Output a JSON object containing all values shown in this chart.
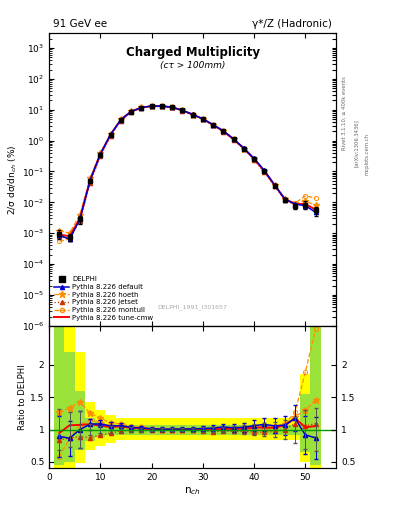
{
  "title_top": "91 GeV ee",
  "title_top_right": "γ*/Z (Hadronic)",
  "plot_title": "Charged Multiplicity",
  "plot_subtitle": "(cτ > 100mm)",
  "ylabel_main": "2/σ dσ/dn$_{ch}$ (%)",
  "ylabel_ratio": "Ratio to DELPHI",
  "xlabel": "n$_{ch}$",
  "rivet_text": "Rivet 3.1.10, ≥ 400k events",
  "arxiv_text": "[arXiv:1306.3436]",
  "mcplots_text": "mcplots.cern.ch",
  "ref_text": "DELPHI_1991_I301657",
  "ref_label": "DELPHI",
  "ylim_main": [
    1e-06,
    3000.0
  ],
  "ylim_ratio": [
    0.4,
    2.6
  ],
  "xlim": [
    0,
    56
  ],
  "nch_data": [
    2,
    4,
    6,
    8,
    10,
    12,
    14,
    16,
    18,
    20,
    22,
    24,
    26,
    28,
    30,
    32,
    34,
    36,
    38,
    40,
    42,
    44,
    46,
    48,
    50,
    52
  ],
  "data_y": [
    0.00095,
    0.00075,
    0.0028,
    0.048,
    0.34,
    1.5,
    4.5,
    8.5,
    11.5,
    13.0,
    13.0,
    12.0,
    9.5,
    7.0,
    5.0,
    3.2,
    2.0,
    1.1,
    0.55,
    0.25,
    0.1,
    0.035,
    0.012,
    0.0075,
    0.0085,
    0.0055
  ],
  "data_yerr": [
    0.0003,
    0.0002,
    0.0008,
    0.004,
    0.018,
    0.09,
    0.18,
    0.28,
    0.35,
    0.38,
    0.38,
    0.32,
    0.28,
    0.22,
    0.18,
    0.13,
    0.09,
    0.065,
    0.038,
    0.022,
    0.01,
    0.004,
    0.0018,
    0.0015,
    0.0025,
    0.0018
  ],
  "mc_nch": [
    2,
    4,
    6,
    8,
    10,
    12,
    14,
    16,
    18,
    20,
    22,
    24,
    26,
    28,
    30,
    32,
    34,
    36,
    38,
    40,
    42,
    44,
    46,
    48,
    50,
    52
  ],
  "default_y": [
    0.00085,
    0.00065,
    0.0028,
    0.052,
    0.37,
    1.58,
    4.78,
    8.78,
    11.78,
    13.18,
    13.08,
    12.08,
    9.58,
    7.08,
    5.08,
    3.28,
    2.08,
    1.13,
    0.57,
    0.265,
    0.108,
    0.037,
    0.0128,
    0.0088,
    0.0078,
    0.0048
  ],
  "hoeth_y": [
    0.0012,
    0.001,
    0.004,
    0.06,
    0.4,
    1.65,
    4.9,
    8.9,
    11.9,
    13.1,
    13.0,
    12.0,
    9.5,
    7.0,
    5.0,
    3.2,
    2.0,
    1.1,
    0.55,
    0.25,
    0.1,
    0.036,
    0.013,
    0.009,
    0.011,
    0.008
  ],
  "jetset_y": [
    0.0008,
    0.00065,
    0.0025,
    0.042,
    0.31,
    1.42,
    4.4,
    8.4,
    11.4,
    12.9,
    12.9,
    11.9,
    9.4,
    6.9,
    4.9,
    3.1,
    1.95,
    1.07,
    0.535,
    0.24,
    0.096,
    0.034,
    0.012,
    0.0082,
    0.009,
    0.006
  ],
  "montull_y": [
    0.00055,
    0.00065,
    0.003,
    0.055,
    0.38,
    1.58,
    4.75,
    8.75,
    11.75,
    13.1,
    13.05,
    12.05,
    9.55,
    7.05,
    5.05,
    3.25,
    2.05,
    1.12,
    0.56,
    0.26,
    0.105,
    0.037,
    0.013,
    0.0095,
    0.016,
    0.014
  ],
  "tunecmw_y": [
    0.0009,
    0.0008,
    0.003,
    0.052,
    0.36,
    1.56,
    4.72,
    8.72,
    11.72,
    13.08,
    13.02,
    12.02,
    9.52,
    7.02,
    5.02,
    3.22,
    2.02,
    1.11,
    0.558,
    0.258,
    0.103,
    0.036,
    0.0128,
    0.0088,
    0.0088,
    0.0058
  ],
  "color_data": "#000000",
  "color_default": "#0000cc",
  "color_hoeth": "#ff8c00",
  "color_jetset": "#cc3300",
  "color_montull": "#ff8c00",
  "color_tunecmw": "#ff0000",
  "band_x": [
    1,
    3,
    5,
    7,
    9,
    11,
    13,
    15,
    17,
    19,
    21,
    23,
    25,
    27,
    29,
    31,
    33,
    35,
    37,
    39,
    41,
    43,
    45,
    47,
    49,
    51,
    53
  ],
  "band_green_lo": [
    0.45,
    0.5,
    0.68,
    0.82,
    0.88,
    0.91,
    0.92,
    0.92,
    0.92,
    0.92,
    0.92,
    0.92,
    0.92,
    0.92,
    0.92,
    0.92,
    0.92,
    0.92,
    0.92,
    0.92,
    0.92,
    0.92,
    0.92,
    0.92,
    0.65,
    0.45
  ],
  "band_green_hi": [
    2.6,
    2.2,
    1.6,
    1.18,
    1.12,
    1.08,
    1.07,
    1.07,
    1.07,
    1.07,
    1.07,
    1.07,
    1.07,
    1.07,
    1.07,
    1.07,
    1.07,
    1.07,
    1.07,
    1.07,
    1.07,
    1.07,
    1.07,
    1.07,
    1.55,
    2.6
  ],
  "band_yellow_lo": [
    0.4,
    0.4,
    0.48,
    0.68,
    0.75,
    0.8,
    0.84,
    0.84,
    0.84,
    0.84,
    0.84,
    0.84,
    0.84,
    0.84,
    0.84,
    0.84,
    0.84,
    0.84,
    0.84,
    0.84,
    0.84,
    0.84,
    0.84,
    0.84,
    0.5,
    0.4
  ],
  "band_yellow_hi": [
    2.8,
    2.7,
    2.2,
    1.42,
    1.3,
    1.22,
    1.18,
    1.18,
    1.18,
    1.18,
    1.18,
    1.18,
    1.18,
    1.18,
    1.18,
    1.18,
    1.18,
    1.18,
    1.18,
    1.18,
    1.18,
    1.18,
    1.18,
    1.18,
    1.85,
    2.8
  ]
}
